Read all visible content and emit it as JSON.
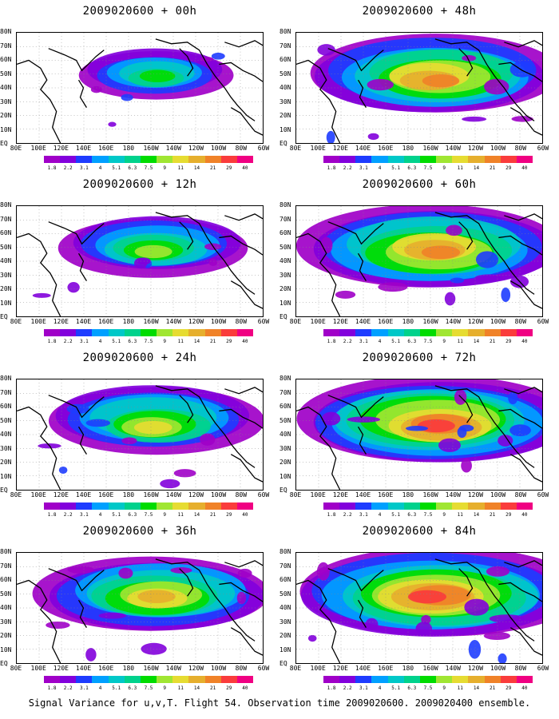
{
  "panels": [
    {
      "title": "2009020600 + 00h",
      "lead": "00h",
      "col": 0,
      "row": 0,
      "intensity": 0.25
    },
    {
      "title": "2009020600 + 12h",
      "lead": "12h",
      "col": 0,
      "row": 1,
      "intensity": 0.45
    },
    {
      "title": "2009020600 + 24h",
      "lead": "24h",
      "col": 0,
      "row": 2,
      "intensity": 0.6
    },
    {
      "title": "2009020600 + 36h",
      "lead": "36h",
      "col": 0,
      "row": 3,
      "intensity": 0.72
    },
    {
      "title": "2009020600 + 48h",
      "lead": "48h",
      "col": 1,
      "row": 0,
      "intensity": 0.8
    },
    {
      "title": "2009020600 + 60h",
      "lead": "60h",
      "col": 1,
      "row": 1,
      "intensity": 0.88
    },
    {
      "title": "2009020600 + 72h",
      "lead": "72h",
      "col": 1,
      "row": 2,
      "intensity": 0.95
    },
    {
      "title": "2009020600 + 84h",
      "lead": "84h",
      "col": 1,
      "row": 3,
      "intensity": 1.0
    }
  ],
  "lat_labels": [
    "80N",
    "70N",
    "60N",
    "50N",
    "40N",
    "30N",
    "20N",
    "10N",
    "EQ"
  ],
  "lon_labels": [
    "80E",
    "100E",
    "120E",
    "140E",
    "160E",
    "180",
    "160W",
    "140W",
    "120W",
    "100W",
    "80W",
    "60W"
  ],
  "colorbar": {
    "levels": [
      "1.8",
      "2.2",
      "3.1",
      "4",
      "5.1",
      "6.3",
      "7.5",
      "9",
      "11",
      "14",
      "21",
      "29",
      "40"
    ],
    "colors": [
      "#a000c8",
      "#8200dc",
      "#1e3cff",
      "#00a0ff",
      "#00c8c8",
      "#00d28c",
      "#00dc00",
      "#a0e632",
      "#e6dc32",
      "#e6af2d",
      "#f08228",
      "#fa3c3c",
      "#f00082"
    ]
  },
  "footer": "Signal Variance for u,v,T. Flight 54. Observation time 2009020600. 2009020400 ensemble."
}
